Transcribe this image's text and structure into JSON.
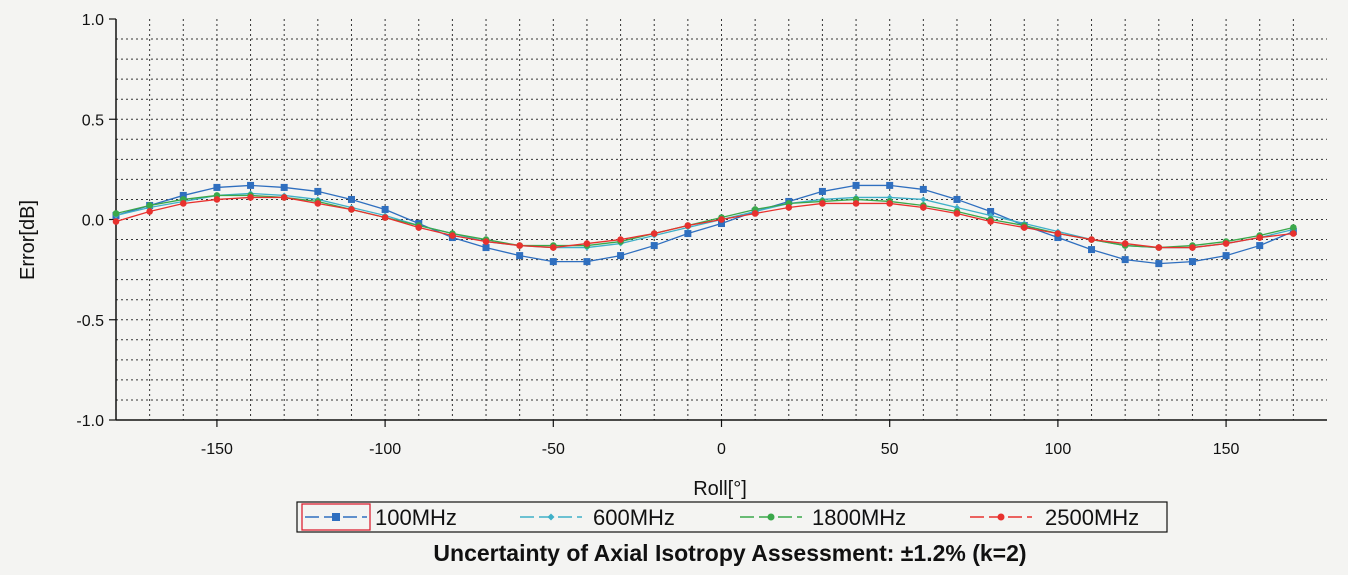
{
  "chart_data": {
    "type": "line",
    "xlabel": "Roll[°]",
    "ylabel": "Error[dB]",
    "caption": "Uncertainty of Axial Isotropy Assessment: ±1.2% (k=2)",
    "xlim": [
      -180,
      180
    ],
    "ylim": [
      -1.0,
      1.0
    ],
    "x_ticks": [
      -150,
      -100,
      -50,
      0,
      50,
      100,
      150
    ],
    "y_ticks": [
      1.0,
      0.5,
      0.0,
      -0.5,
      -1.0
    ],
    "y_tick_labels": [
      "1.0",
      "0.5",
      "0.0",
      "-0.5",
      "-1.0"
    ],
    "grid": true,
    "legend_position": "bottom",
    "x": [
      -180,
      -170,
      -160,
      -150,
      -140,
      -130,
      -120,
      -110,
      -100,
      -90,
      -80,
      -70,
      -60,
      -50,
      -40,
      -30,
      -20,
      -10,
      0,
      10,
      20,
      30,
      40,
      50,
      60,
      70,
      80,
      90,
      100,
      110,
      120,
      130,
      140,
      150,
      160,
      170
    ],
    "series": [
      {
        "name": "100MHz",
        "color": "#2f6fbf",
        "marker": "square",
        "values": [
          0.02,
          0.07,
          0.12,
          0.16,
          0.17,
          0.16,
          0.14,
          0.1,
          0.05,
          -0.02,
          -0.09,
          -0.14,
          -0.18,
          -0.21,
          -0.21,
          -0.18,
          -0.13,
          -0.07,
          -0.02,
          0.04,
          0.09,
          0.14,
          0.17,
          0.17,
          0.15,
          0.1,
          0.04,
          -0.03,
          -0.09,
          -0.15,
          -0.2,
          -0.22,
          -0.21,
          -0.18,
          -0.13,
          -0.06
        ]
      },
      {
        "name": "600MHz",
        "color": "#3fb0c8",
        "marker": "diamond",
        "values": [
          0.02,
          0.06,
          0.09,
          0.12,
          0.13,
          0.12,
          0.1,
          0.06,
          0.02,
          -0.03,
          -0.07,
          -0.11,
          -0.13,
          -0.14,
          -0.14,
          -0.12,
          -0.08,
          -0.04,
          0.0,
          0.04,
          0.08,
          0.1,
          0.11,
          0.11,
          0.1,
          0.06,
          0.02,
          -0.02,
          -0.06,
          -0.1,
          -0.13,
          -0.14,
          -0.14,
          -0.12,
          -0.09,
          -0.05
        ]
      },
      {
        "name": "1800MHz",
        "color": "#3aa84a",
        "marker": "circle",
        "values": [
          0.03,
          0.07,
          0.1,
          0.12,
          0.12,
          0.11,
          0.09,
          0.05,
          0.01,
          -0.03,
          -0.07,
          -0.1,
          -0.13,
          -0.13,
          -0.13,
          -0.11,
          -0.07,
          -0.03,
          0.01,
          0.05,
          0.08,
          0.09,
          0.1,
          0.09,
          0.07,
          0.04,
          0.0,
          -0.03,
          -0.07,
          -0.1,
          -0.13,
          -0.14,
          -0.13,
          -0.11,
          -0.08,
          -0.04
        ]
      },
      {
        "name": "2500MHz",
        "color": "#e8312e",
        "marker": "circle",
        "values": [
          -0.01,
          0.04,
          0.08,
          0.1,
          0.11,
          0.11,
          0.08,
          0.05,
          0.01,
          -0.04,
          -0.08,
          -0.11,
          -0.13,
          -0.14,
          -0.12,
          -0.1,
          -0.07,
          -0.03,
          0.0,
          0.03,
          0.06,
          0.08,
          0.08,
          0.08,
          0.06,
          0.03,
          -0.01,
          -0.04,
          -0.07,
          -0.1,
          -0.12,
          -0.14,
          -0.14,
          -0.12,
          -0.09,
          -0.07
        ]
      }
    ]
  }
}
